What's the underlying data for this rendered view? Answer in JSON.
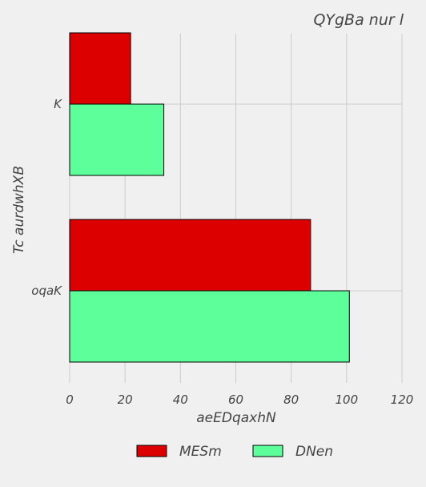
{
  "chart_data": {
    "type": "bar",
    "orientation": "horizontal",
    "title": "QYgBa nur l",
    "xlabel": "aeEDqaxhN",
    "ylabel": "Tc aurdwhXB",
    "categories": [
      "K",
      "oqaK"
    ],
    "series": [
      {
        "name": "MESm",
        "values": [
          22,
          87
        ],
        "color": "#dd0000"
      },
      {
        "name": "DNen",
        "values": [
          34,
          101
        ],
        "color": "#5cff99"
      }
    ],
    "xlim": [
      0,
      120
    ],
    "xticks": [
      0,
      20,
      40,
      60,
      80,
      100,
      120
    ],
    "grid": true,
    "legend_position": "bottom"
  }
}
